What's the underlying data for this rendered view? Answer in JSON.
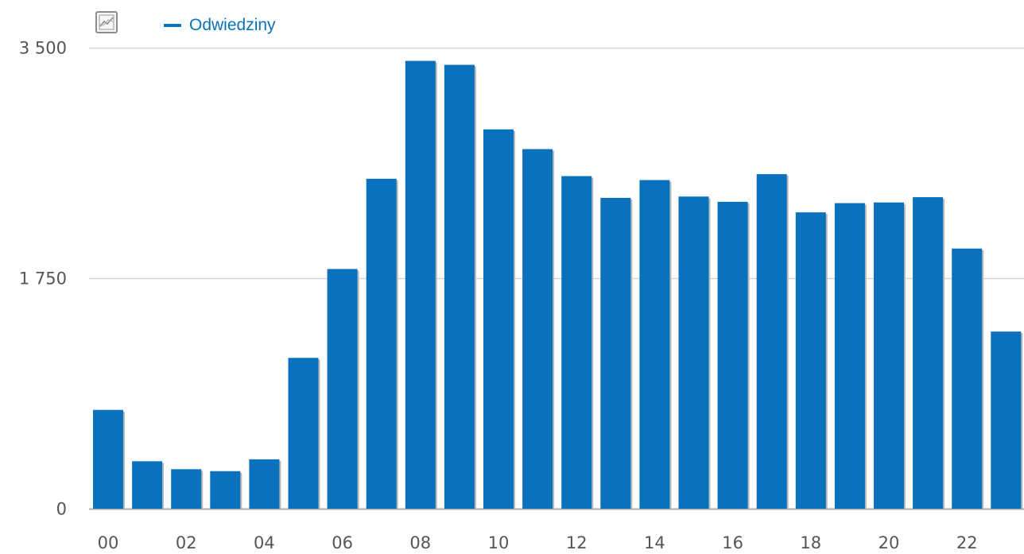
{
  "toolbar": {
    "chart_type_icon": "line-chart-icon"
  },
  "legend": {
    "label": "Odwiedziny",
    "color": "#0a72bd"
  },
  "colors": {
    "bar": "#0a72bd",
    "bar_shadow": "#b9b9b9",
    "grid": "#d6d6d6",
    "axis": "#aaaaaa",
    "text": "#555555"
  },
  "chart_data": {
    "type": "bar",
    "title": "",
    "xlabel": "",
    "ylabel": "",
    "ylim": [
      0,
      3500
    ],
    "yticks": [
      0,
      1750,
      3500
    ],
    "ytick_labels": [
      "0",
      "1 750",
      "3 500"
    ],
    "grid": true,
    "legend_position": "top-left",
    "categories": [
      "00",
      "01",
      "02",
      "03",
      "04",
      "05",
      "06",
      "07",
      "08",
      "09",
      "10",
      "11",
      "12",
      "13",
      "14",
      "15",
      "16",
      "17",
      "18",
      "19",
      "20",
      "21",
      "22",
      "23"
    ],
    "xtick_labels": [
      "00",
      "",
      "02",
      "",
      "04",
      "",
      "06",
      "",
      "08",
      "",
      "10",
      "",
      "12",
      "",
      "14",
      "",
      "16",
      "",
      "18",
      "",
      "20",
      "",
      "22",
      ""
    ],
    "series": [
      {
        "name": "Odwiedziny",
        "values": [
          750,
          360,
          300,
          285,
          375,
          1145,
          1820,
          2505,
          3400,
          3370,
          2880,
          2730,
          2525,
          2360,
          2495,
          2370,
          2330,
          2540,
          2250,
          2320,
          2325,
          2365,
          1975,
          1345
        ]
      }
    ]
  }
}
